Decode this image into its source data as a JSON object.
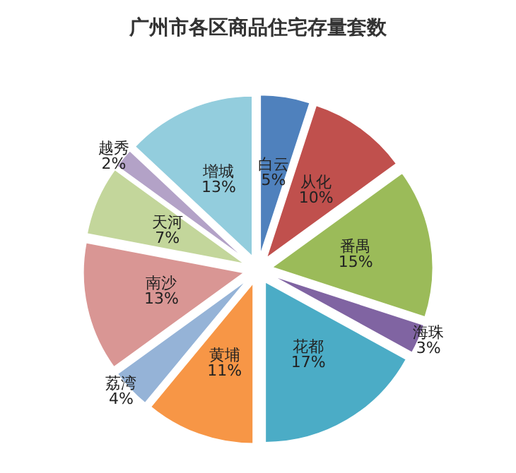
{
  "chart_data": {
    "type": "pie",
    "title": "广州市各区商品住宅存量套数",
    "categories": [
      "白云",
      "从化",
      "番禺",
      "海珠",
      "花都",
      "黄埔",
      "荔湾",
      "南沙",
      "天河",
      "越秀",
      "增城"
    ],
    "values": [
      5,
      10,
      15,
      3,
      17,
      11,
      4,
      13,
      7,
      2,
      13
    ],
    "value_labels": [
      "5%",
      "10%",
      "15%",
      "3%",
      "17%",
      "11%",
      "4%",
      "13%",
      "7%",
      "2%",
      "13%"
    ],
    "colors": [
      "#4f81bd",
      "#c0504d",
      "#9bbb59",
      "#8064a2",
      "#4bacc6",
      "#f79646",
      "#95b3d7",
      "#d99694",
      "#c3d69b",
      "#b3a2c7",
      "#93cddd"
    ]
  }
}
